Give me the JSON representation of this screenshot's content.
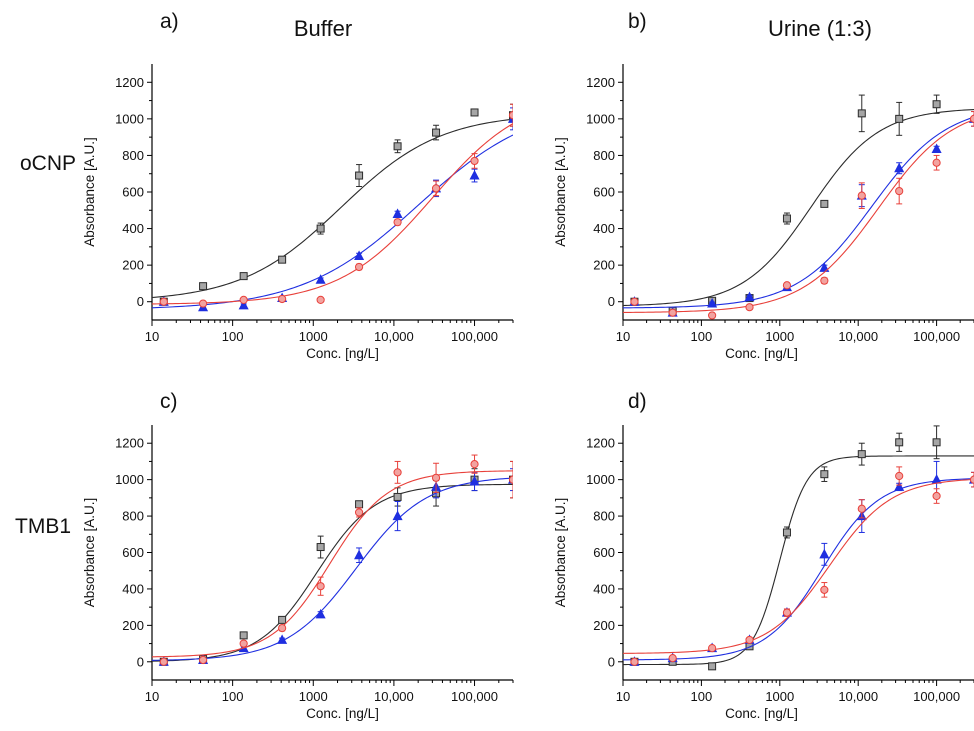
{
  "rows": [
    {
      "label": "oCNP"
    },
    {
      "label": "TMB1"
    }
  ],
  "columns": [
    {
      "title": "Buffer"
    },
    {
      "title": "Urine (1:3)"
    }
  ],
  "colors": {
    "black_series": "#2b2b2b",
    "black_marker_fill": "#a6a6a6",
    "blue_series": "#1f2fe0",
    "red_series": "#e8403a",
    "red_marker_fill": "#f2a3a0"
  },
  "chart_data": [
    {
      "panel_label": "a)",
      "type": "scatter",
      "xlabel": "Conc. [ng/L]",
      "ylabel": "Absorbance [A.U.]",
      "x_scale": "log",
      "xlim": [
        10,
        300000
      ],
      "ylim": [
        -100,
        1300
      ],
      "xticks": [
        10,
        100,
        1000,
        10000,
        100000
      ],
      "xtick_labels": [
        "10",
        "100",
        "1000",
        "10,000",
        "100,000"
      ],
      "yticks": [
        0,
        200,
        400,
        600,
        800,
        1000,
        1200
      ],
      "ytick_labels": [
        "0",
        "200",
        "400",
        "600",
        "800",
        "1000",
        "1200"
      ],
      "grid": false,
      "series": [
        {
          "color_key": "black",
          "marker": "square",
          "x": [
            14,
            43,
            137,
            411,
            1234,
            3700,
            11111,
            33333,
            100000,
            300000
          ],
          "y": [
            0,
            85,
            140,
            230,
            400,
            690,
            850,
            925,
            1035,
            1020
          ],
          "err": [
            10,
            12,
            15,
            15,
            30,
            60,
            35,
            40,
            10,
            60
          ],
          "fit": {
            "bottom": 0,
            "top": 1030,
            "ec50": 2200,
            "hill": 0.7
          }
        },
        {
          "color_key": "blue",
          "marker": "triangle",
          "x": [
            14,
            43,
            137,
            411,
            1234,
            3700,
            11111,
            33333,
            100000,
            300000
          ],
          "y": [
            0,
            -30,
            -20,
            20,
            120,
            250,
            480,
            620,
            690,
            1000
          ],
          "err": [
            8,
            8,
            8,
            10,
            10,
            15,
            15,
            45,
            35,
            60
          ],
          "fit": {
            "bottom": -45,
            "top": 1100,
            "ec50": 20000,
            "hill": 0.6
          }
        },
        {
          "color_key": "red",
          "marker": "circle",
          "x": [
            14,
            43,
            137,
            411,
            1234,
            3700,
            11111,
            33333,
            100000,
            300000
          ],
          "y": [
            0,
            -10,
            10,
            15,
            10,
            190,
            435,
            620,
            770,
            1020
          ],
          "err": [
            8,
            8,
            8,
            10,
            8,
            15,
            15,
            40,
            40,
            60
          ],
          "fit": {
            "bottom": -15,
            "top": 1150,
            "ec50": 30000,
            "hill": 0.75
          }
        }
      ]
    },
    {
      "panel_label": "b)",
      "type": "scatter",
      "xlabel": "Conc. [ng/L]",
      "ylabel": "Absorbance [A.U.]",
      "x_scale": "log",
      "xlim": [
        10,
        300000
      ],
      "ylim": [
        -100,
        1300
      ],
      "xticks": [
        10,
        100,
        1000,
        10000,
        100000
      ],
      "xtick_labels": [
        "10",
        "100",
        "1000",
        "10,000",
        "100,000"
      ],
      "yticks": [
        0,
        200,
        400,
        600,
        800,
        1000,
        1200
      ],
      "ytick_labels": [
        "0",
        "200",
        "400",
        "600",
        "800",
        "1000",
        "1200"
      ],
      "grid": false,
      "series": [
        {
          "color_key": "black",
          "marker": "square",
          "x": [
            14,
            43,
            137,
            411,
            1234,
            3700,
            11111,
            33333,
            100000
          ],
          "y": [
            0,
            -50,
            5,
            20,
            455,
            535,
            1030,
            1000,
            1080
          ],
          "err": [
            8,
            10,
            10,
            10,
            30,
            10,
            100,
            90,
            50
          ],
          "fit": {
            "bottom": -25,
            "top": 1060,
            "ec50": 2500,
            "hill": 1.0
          }
        },
        {
          "color_key": "blue",
          "marker": "triangle",
          "x": [
            14,
            43,
            137,
            411,
            1234,
            3700,
            11111,
            33333,
            100000,
            300000
          ],
          "y": [
            0,
            -60,
            -10,
            25,
            80,
            185,
            580,
            730,
            835,
            1000
          ],
          "err": [
            8,
            8,
            8,
            10,
            10,
            15,
            60,
            30,
            15,
            40
          ],
          "fit": {
            "bottom": -35,
            "top": 1080,
            "ec50": 15000,
            "hill": 0.9
          }
        },
        {
          "color_key": "red",
          "marker": "circle",
          "x": [
            14,
            43,
            137,
            411,
            1234,
            3700,
            11111,
            33333,
            100000,
            300000
          ],
          "y": [
            0,
            -60,
            -75,
            -30,
            90,
            115,
            580,
            605,
            760,
            1000
          ],
          "err": [
            8,
            8,
            8,
            10,
            10,
            15,
            70,
            70,
            40,
            40
          ],
          "fit": {
            "bottom": -60,
            "top": 1080,
            "ec50": 18000,
            "hill": 0.9
          }
        }
      ]
    },
    {
      "panel_label": "c)",
      "type": "scatter",
      "xlabel": "Conc. [ng/L]",
      "ylabel": "Absorbance [A.U.]",
      "x_scale": "log",
      "xlim": [
        10,
        300000
      ],
      "ylim": [
        -100,
        1300
      ],
      "xticks": [
        10,
        100,
        1000,
        10000,
        100000
      ],
      "xtick_labels": [
        "10",
        "100",
        "1000",
        "10,000",
        "100,000"
      ],
      "yticks": [
        0,
        200,
        400,
        600,
        800,
        1000,
        1200
      ],
      "ytick_labels": [
        "0",
        "200",
        "400",
        "600",
        "800",
        "1000",
        "1200"
      ],
      "grid": false,
      "series": [
        {
          "color_key": "black",
          "marker": "square",
          "x": [
            14,
            43,
            137,
            411,
            1234,
            3700,
            11111,
            33333,
            100000,
            300000
          ],
          "y": [
            0,
            15,
            145,
            230,
            630,
            865,
            905,
            925,
            1000,
            1000
          ],
          "err": [
            8,
            10,
            12,
            15,
            60,
            15,
            50,
            70,
            60,
            100
          ],
          "fit": {
            "bottom": 0,
            "top": 975,
            "ec50": 1100,
            "hill": 1.2
          }
        },
        {
          "color_key": "blue",
          "marker": "triangle",
          "x": [
            14,
            43,
            137,
            411,
            1234,
            3700,
            11111,
            33333,
            100000,
            300000
          ],
          "y": [
            0,
            10,
            75,
            120,
            260,
            585,
            800,
            960,
            990,
            1000
          ],
          "err": [
            8,
            8,
            10,
            10,
            15,
            40,
            80,
            60,
            50,
            60
          ],
          "fit": {
            "bottom": 5,
            "top": 1020,
            "ec50": 3400,
            "hill": 1.0
          }
        },
        {
          "color_key": "red",
          "marker": "circle",
          "x": [
            14,
            43,
            137,
            411,
            1234,
            3700,
            11111,
            33333,
            100000,
            300000
          ],
          "y": [
            0,
            10,
            100,
            185,
            415,
            820,
            1040,
            1010,
            1085,
            1000
          ],
          "err": [
            8,
            8,
            10,
            15,
            50,
            25,
            60,
            80,
            50,
            100
          ],
          "fit": {
            "bottom": 25,
            "top": 1050,
            "ec50": 1600,
            "hill": 1.2
          }
        }
      ]
    },
    {
      "panel_label": "d)",
      "type": "scatter",
      "xlabel": "Conc. [ng/L]",
      "ylabel": "Absorbance [A.U.]",
      "x_scale": "log",
      "xlim": [
        10,
        300000
      ],
      "ylim": [
        -100,
        1300
      ],
      "xticks": [
        10,
        100,
        1000,
        10000,
        100000
      ],
      "xtick_labels": [
        "10",
        "100",
        "1000",
        "10,000",
        "100,000"
      ],
      "yticks": [
        0,
        200,
        400,
        600,
        800,
        1000,
        1200
      ],
      "ytick_labels": [
        "0",
        "200",
        "400",
        "600",
        "800",
        "1000",
        "1200"
      ],
      "grid": false,
      "series": [
        {
          "color_key": "black",
          "marker": "square",
          "x": [
            14,
            43,
            137,
            411,
            1234,
            3700,
            11111,
            33333,
            100000
          ],
          "y": [
            0,
            0,
            -25,
            85,
            710,
            1030,
            1140,
            1205,
            1205
          ],
          "err": [
            8,
            10,
            10,
            12,
            30,
            40,
            60,
            50,
            90
          ],
          "fit": {
            "bottom": -15,
            "top": 1130,
            "ec50": 1000,
            "hill": 2.5
          }
        },
        {
          "color_key": "blue",
          "marker": "triangle",
          "x": [
            14,
            43,
            137,
            411,
            1234,
            3700,
            11111,
            33333,
            100000,
            300000
          ],
          "y": [
            0,
            20,
            75,
            120,
            270,
            590,
            800,
            960,
            1000,
            1000
          ],
          "err": [
            8,
            8,
            10,
            12,
            20,
            60,
            90,
            20,
            100,
            40
          ],
          "fit": {
            "bottom": 10,
            "top": 1010,
            "ec50": 3500,
            "hill": 1.2
          }
        },
        {
          "color_key": "red",
          "marker": "circle",
          "x": [
            14,
            43,
            137,
            411,
            1234,
            3700,
            11111,
            33333,
            100000,
            300000
          ],
          "y": [
            0,
            20,
            75,
            120,
            270,
            395,
            840,
            1020,
            910,
            1000
          ],
          "err": [
            8,
            8,
            10,
            12,
            20,
            40,
            50,
            50,
            40,
            40
          ],
          "fit": {
            "bottom": 45,
            "top": 1010,
            "ec50": 4300,
            "hill": 1.1
          }
        }
      ]
    }
  ]
}
